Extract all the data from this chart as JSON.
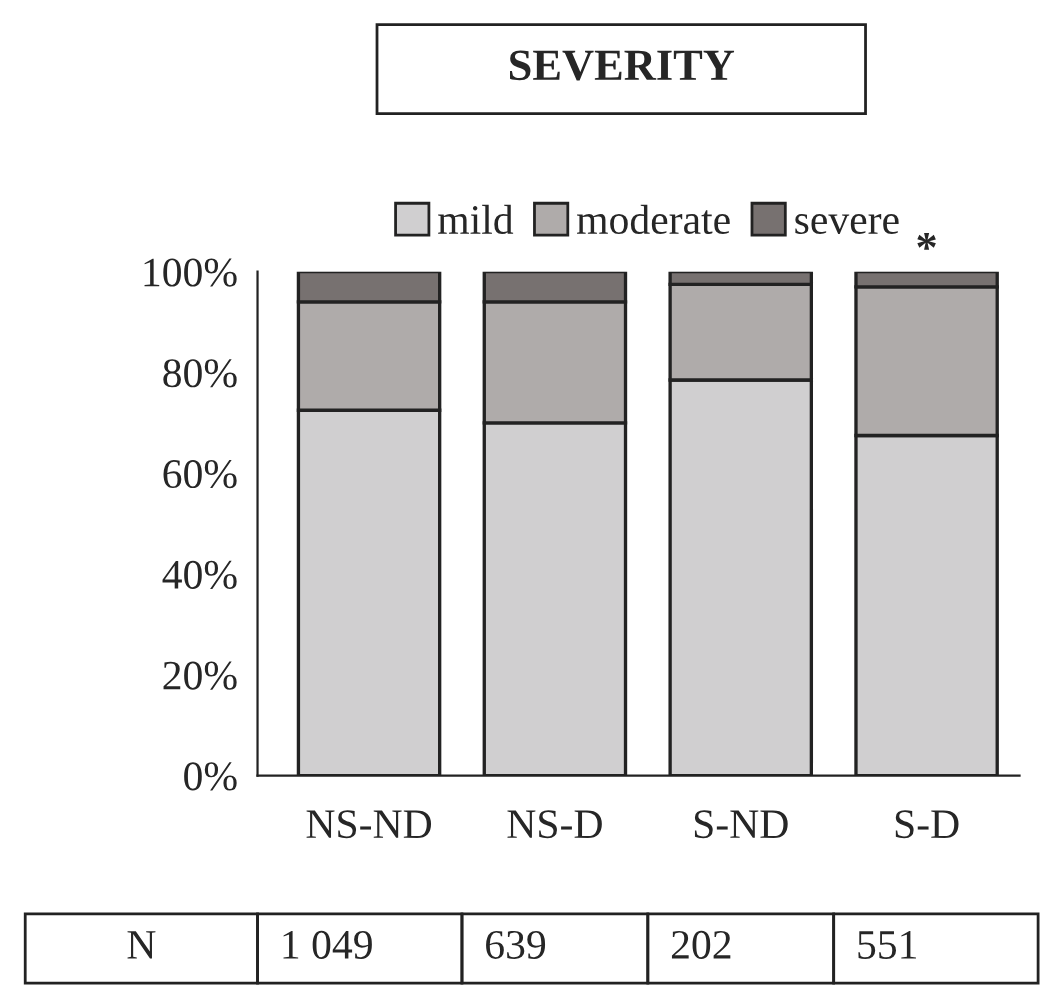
{
  "chart_data": {
    "type": "bar",
    "stacked": true,
    "title": "SEVERITY",
    "categories": [
      "NS-ND",
      "NS-D",
      "S-ND",
      "S-D"
    ],
    "series": [
      {
        "name": "mild",
        "color": "#d0cfd0",
        "values": [
          72.5,
          70,
          78.5,
          67.5
        ]
      },
      {
        "name": "moderate",
        "color": "#afabaa",
        "values": [
          21.5,
          24,
          19,
          29.5
        ]
      },
      {
        "name": "severe",
        "color": "#777170",
        "values": [
          6,
          6,
          2.5,
          3
        ]
      }
    ],
    "ylim": [
      0,
      100
    ],
    "yticks": [
      {
        "value": 0,
        "label": "0%"
      },
      {
        "value": 20,
        "label": "20%"
      },
      {
        "value": 40,
        "label": "40%"
      },
      {
        "value": 60,
        "label": "60%"
      },
      {
        "value": 80,
        "label": "80%"
      },
      {
        "value": 100,
        "label": "100%"
      }
    ],
    "legend": "top",
    "grid": false,
    "annotations": [
      {
        "text": "*",
        "x": "S-D",
        "y": 100
      },
      "N",
      "1 049",
      "639",
      "202",
      "551"
    ]
  }
}
